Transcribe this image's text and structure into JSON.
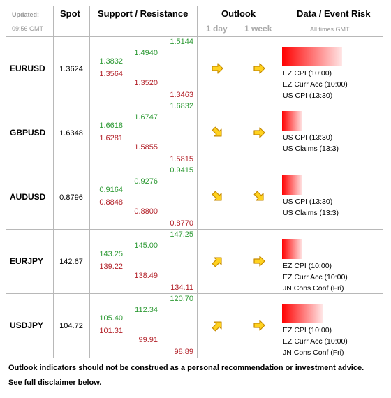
{
  "header": {
    "updated": "Updated:",
    "time": "09:56 GMT",
    "spot": "Spot",
    "support_resistance": "Support / Resistance",
    "outlook": "Outlook",
    "day": "1 day",
    "week": "1 week",
    "data_event_risk": "Data / Event Risk",
    "times": "All times GMT"
  },
  "rows": [
    {
      "pair": "EURUSD",
      "spot": "1.3624",
      "levels": [
        [
          "1.3832",
          "1.3564"
        ],
        [
          "1.4940",
          "1.3520"
        ],
        [
          "1.5144",
          "1.3463"
        ]
      ],
      "events": [
        "EZ CPI (10:00)",
        "EZ Curr Acc (10:00)",
        "US CPI (13:30)"
      ]
    },
    {
      "pair": "GBPUSD",
      "spot": "1.6348",
      "levels": [
        [
          "1.6618",
          "1.6281"
        ],
        [
          "1.6747",
          "1.5855"
        ],
        [
          "1.6832",
          "1.5815"
        ]
      ],
      "events": [
        "US CPI (13:30)",
        "US Claims (13:3)"
      ]
    },
    {
      "pair": "AUDUSD",
      "spot": "0.8796",
      "levels": [
        [
          "0.9164",
          "0.8848"
        ],
        [
          "0.9276",
          "0.8800"
        ],
        [
          "0.9415",
          "0.8770"
        ]
      ],
      "events": [
        "US CPI (13:30)",
        "US Claims (13:3)"
      ]
    },
    {
      "pair": "EURJPY",
      "spot": "142.67",
      "levels": [
        [
          "143.25",
          "139.22"
        ],
        [
          "145.00",
          "138.49"
        ],
        [
          "147.25",
          "134.11"
        ]
      ],
      "events": [
        "EZ CPI (10:00)",
        "EZ Curr Acc (10:00)",
        "JN Cons Conf (Fri)"
      ]
    },
    {
      "pair": "USDJPY",
      "spot": "104.72",
      "levels": [
        [
          "105.40",
          "101.31"
        ],
        [
          "112.34",
          "99.91"
        ],
        [
          "120.70",
          "98.89"
        ]
      ],
      "events": [
        "EZ CPI (10:00)",
        "EZ Curr Acc (10:00)",
        "JN Cons Conf (Fri)"
      ]
    }
  ],
  "footer": [
    "Outlook indicators should not be construed as a personal recommendation or investment advice.",
    "See full disclaimer below."
  ]
}
